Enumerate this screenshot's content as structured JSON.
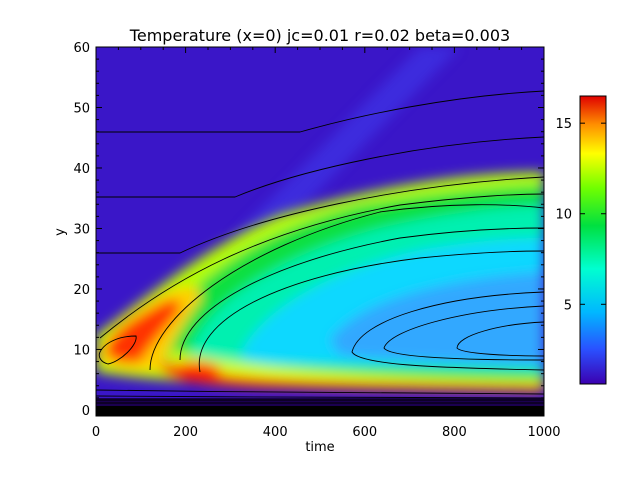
{
  "chart_data": {
    "type": "heatmap",
    "title": "Temperature (x=0) jc=0.01 r=0.02 beta=0.003",
    "xlabel": "time",
    "ylabel": "y",
    "xlim": [
      0,
      1000
    ],
    "ylim": [
      -1,
      60
    ],
    "xticks": [
      "0",
      "200",
      "400",
      "600",
      "800",
      "1000"
    ],
    "yticks": [
      "0",
      "10",
      "20",
      "30",
      "40",
      "50",
      "60"
    ],
    "colorbar": {
      "range": [
        0.6,
        16.5
      ],
      "ticks": [
        "5",
        "10",
        "15"
      ],
      "colormap": "rainbow (IDL color table 39)"
    },
    "grid": false,
    "features": {
      "hot_band_bottom_y": 5,
      "peak_value": 16,
      "warm_plume_top_y_at_1000": 38,
      "cool_core_center_y_at_1000": 12
    }
  },
  "colors": {
    "background": "#3a16c8",
    "cold": "#3a16c8",
    "hot": "#ff3000"
  }
}
